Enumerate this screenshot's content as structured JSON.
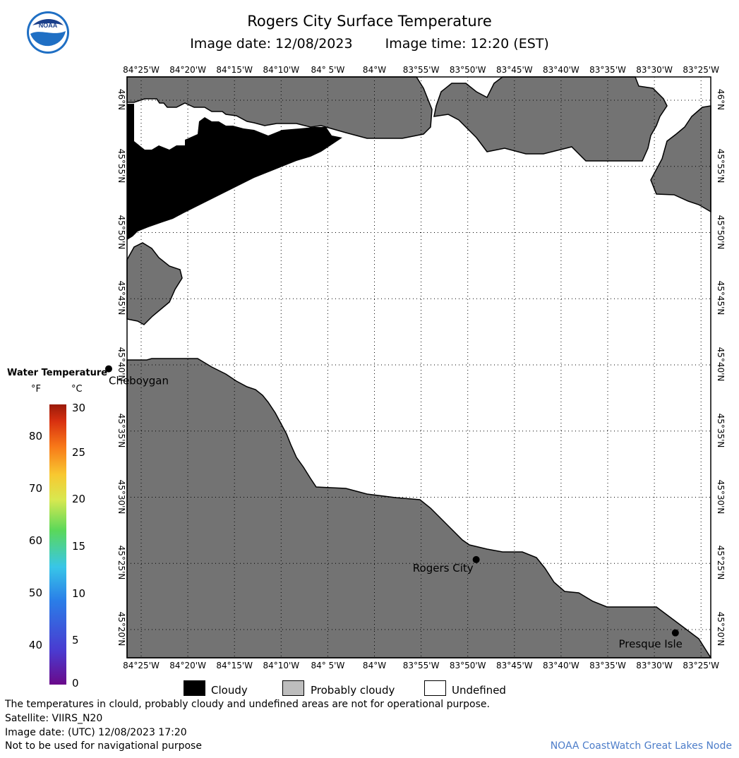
{
  "title": "Rogers City Surface Temperature",
  "image_date": "Image date: 12/08/2023",
  "image_time": "Image time: 12:20 (EST)",
  "lon_labels": [
    "84°25'W",
    "84°20'W",
    "84°15'W",
    "84°10'W",
    "84° 5'W",
    "84°W",
    "83°55'W",
    "83°50'W",
    "83°45'W",
    "83°40'W",
    "83°35'W",
    "83°30'W",
    "83°25'W"
  ],
  "lat_labels": [
    "46°N",
    "45°55'N",
    "45°50'N",
    "45°45'N",
    "45°40'N",
    "45°35'N",
    "45°30'N",
    "45°25'N",
    "45°20'N"
  ],
  "places": [
    {
      "name": "Cheboygan",
      "lat": 45.6617,
      "lon": -84.4747
    },
    {
      "name": "Rogers City",
      "lat": 45.4214,
      "lon": -83.8183
    },
    {
      "name": "Presque Isle",
      "lat": 45.3292,
      "lon": -83.4625
    }
  ],
  "legend": {
    "title": "Water Temperature",
    "unit_f": "°F",
    "unit_c": "°C",
    "f_ticks": [
      "80",
      "70",
      "60",
      "50",
      "40"
    ],
    "c_ticks": [
      "30",
      "25",
      "20",
      "15",
      "10",
      "5",
      "0"
    ],
    "range_c": [
      0,
      30
    ]
  },
  "key": {
    "cloudy": "Cloudy",
    "probably_cloudy": "Probably cloudy",
    "undefined": "Undefined",
    "colors": {
      "cloudy": "#000000",
      "probably_cloudy": "#bdbdbd",
      "undefined": "#ffffff",
      "land": "#737373"
    }
  },
  "notes": {
    "disclaimer": "The temperatures in clould, probably cloudy and undefined areas are not for operational purpose.",
    "satellite": "Satellite: VIIRS_N20",
    "utc_date": "Image date: (UTC) 12/08/2023  17:20",
    "navigation": "Not to be used for navigational purpose",
    "credit": "NOAA CoastWatch Great Lakes Node"
  }
}
